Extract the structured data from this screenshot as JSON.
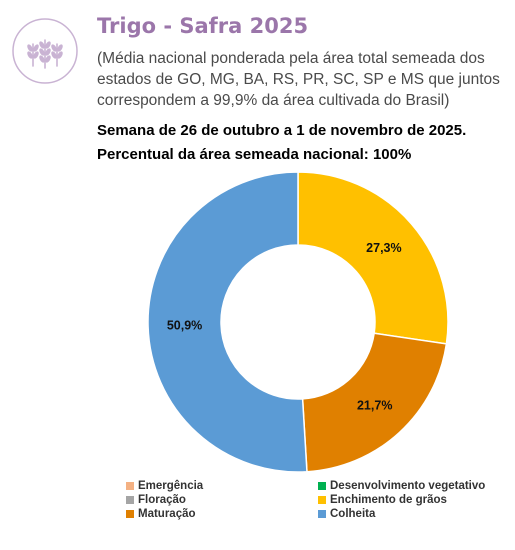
{
  "header": {
    "title": "Trigo - Safra 2025",
    "description": "(Média nacional ponderada pela área total semeada dos estados de GO, MG, BA, RS, PR, SC, SP e MS que juntos correspondem a 99,9% da área cultivada do Brasil)",
    "week_line": "Semana de 26 de outubro a 1 de novembro de 2025.",
    "percent_line": "Percentual da área semeada nacional: 100%",
    "logo_icon": "wheat-icon"
  },
  "chart_data": {
    "type": "pie",
    "variant": "donut",
    "title": "",
    "categories": [
      "Emergência",
      "Desenvolvimento vegetativo",
      "Floração",
      "Enchimento de grãos",
      "Maturação",
      "Colheita"
    ],
    "values": [
      0.0,
      0.0,
      0.0,
      27.3,
      21.7,
      50.9
    ],
    "labels": [
      "",
      "",
      "",
      "27,3%",
      "21,7%",
      "50,9%"
    ],
    "colors": [
      "#f4b183",
      "#00b050",
      "#a5a5a5",
      "#ffc000",
      "#e08000",
      "#5b9bd5"
    ],
    "legend_position": "bottom"
  }
}
